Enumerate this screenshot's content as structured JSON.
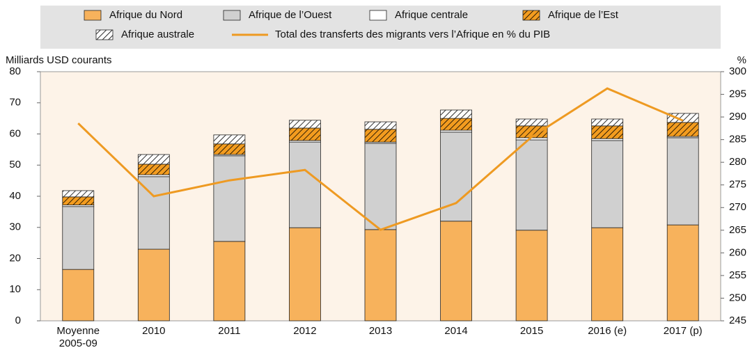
{
  "chart_data": {
    "type": "bar",
    "y_label": "Milliards USD courants",
    "y2_label": "%",
    "categories": [
      "Moyenne 2005-09",
      "2010",
      "2011",
      "2012",
      "2013",
      "2014",
      "2015",
      "2016 (e)",
      "2017 (p)"
    ],
    "stacked": true,
    "series": [
      {
        "name": "Afrique du Nord",
        "color": "#f7b25c",
        "values": [
          16.5,
          23.0,
          25.5,
          29.9,
          29.3,
          32.0,
          29.1,
          29.9,
          30.8
        ]
      },
      {
        "name": "Afrique de l’Ouest",
        "color": "#d0d0d0",
        "values": [
          20.2,
          23.3,
          27.5,
          27.5,
          27.7,
          28.6,
          29.0,
          28.0,
          28.0
        ]
      },
      {
        "name": "Afrique centrale",
        "color": "#ffffff",
        "values": [
          0.5,
          0.6,
          0.4,
          0.5,
          0.4,
          0.6,
          0.7,
          0.6,
          0.4
        ]
      },
      {
        "name": "Afrique de l’Est",
        "color": "#f39c1f",
        "hatch": true,
        "values": [
          2.6,
          3.4,
          3.4,
          4.0,
          4.1,
          3.8,
          3.8,
          4.1,
          4.5
        ]
      },
      {
        "name": "Afrique australe",
        "color": "#ffffff",
        "hatch": true,
        "values": [
          2.0,
          3.1,
          2.9,
          2.5,
          2.4,
          2.7,
          2.2,
          2.2,
          2.9
        ]
      },
      {
        "name": "Total des transferts des migrants vers l’Afrique en % du PIB",
        "color": "#ee9a22",
        "type": "line",
        "axis": "y2",
        "values": [
          288.6,
          272.5,
          276.0,
          278.3,
          265.1,
          271.0,
          285.6,
          296.3,
          289.2
        ]
      }
    ],
    "ylim": [
      0,
      80
    ],
    "yticks": [
      0,
      10,
      20,
      30,
      40,
      50,
      60,
      70,
      80
    ],
    "y2lim": [
      245,
      300
    ],
    "y2ticks": [
      245,
      250,
      255,
      260,
      265,
      270,
      275,
      280,
      285,
      290,
      295,
      300
    ],
    "grid": false
  }
}
